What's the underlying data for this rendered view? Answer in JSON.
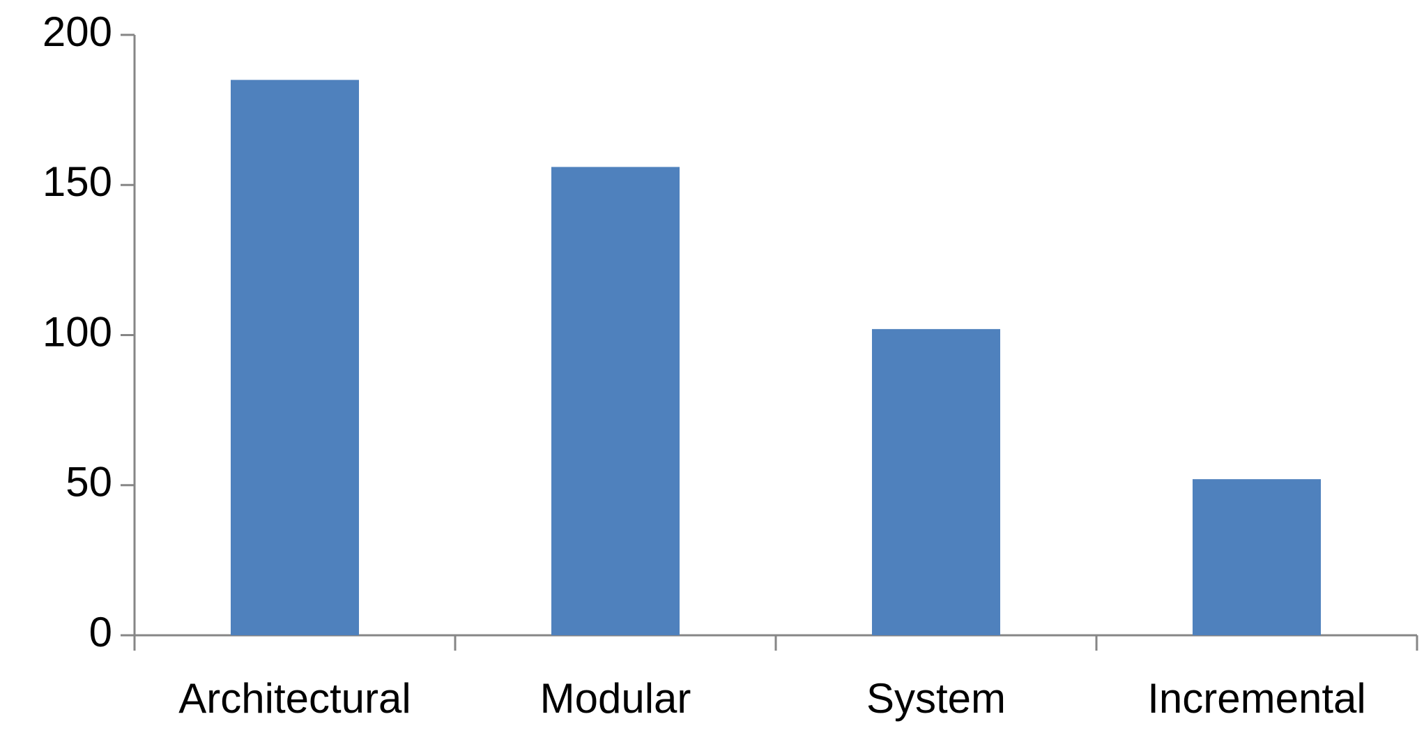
{
  "chart_data": {
    "type": "bar",
    "categories": [
      "Architectural",
      "Modular",
      "System",
      "Incremental"
    ],
    "values": [
      185,
      156,
      102,
      52
    ],
    "color": "#4f81bd",
    "ylim": [
      0,
      200
    ],
    "yticks": [
      0,
      50,
      100,
      150,
      200
    ],
    "grid": false
  }
}
